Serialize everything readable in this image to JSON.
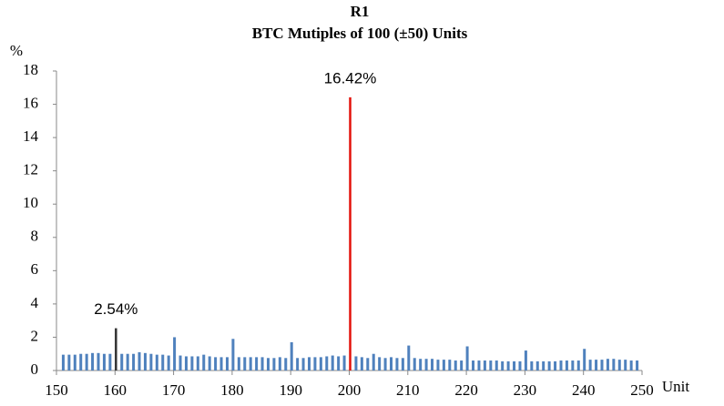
{
  "chart_data": {
    "type": "bar",
    "title": "R1",
    "subtitle": "BTC Mutiples of 100 (±50) Units",
    "y_label": "%",
    "x_label": "Unit",
    "xlim": [
      150,
      250
    ],
    "xticks": [
      150,
      160,
      170,
      180,
      190,
      200,
      210,
      220,
      230,
      240,
      250
    ],
    "ylim": [
      0,
      18
    ],
    "yticks": [
      0,
      2,
      4,
      6,
      8,
      10,
      12,
      14,
      16,
      18
    ],
    "x": [
      151,
      152,
      153,
      154,
      155,
      156,
      157,
      158,
      159,
      160,
      161,
      162,
      163,
      164,
      165,
      166,
      167,
      168,
      169,
      170,
      171,
      172,
      173,
      174,
      175,
      176,
      177,
      178,
      179,
      180,
      181,
      182,
      183,
      184,
      185,
      186,
      187,
      188,
      189,
      190,
      191,
      192,
      193,
      194,
      195,
      196,
      197,
      198,
      199,
      200,
      201,
      202,
      203,
      204,
      205,
      206,
      207,
      208,
      209,
      210,
      211,
      212,
      213,
      214,
      215,
      216,
      217,
      218,
      219,
      220,
      221,
      222,
      223,
      224,
      225,
      226,
      227,
      228,
      229,
      230,
      231,
      232,
      233,
      234,
      235,
      236,
      237,
      238,
      239,
      240,
      241,
      242,
      243,
      244,
      245,
      246,
      247,
      248,
      249
    ],
    "values": [
      0.95,
      0.95,
      0.95,
      1.0,
      1.0,
      1.05,
      1.05,
      1.0,
      1.0,
      2.54,
      1.0,
      1.0,
      1.0,
      1.1,
      1.05,
      1.0,
      0.95,
      0.95,
      0.9,
      2.0,
      0.9,
      0.85,
      0.85,
      0.85,
      0.95,
      0.85,
      0.8,
      0.8,
      0.8,
      1.9,
      0.8,
      0.8,
      0.8,
      0.8,
      0.8,
      0.75,
      0.75,
      0.8,
      0.75,
      1.7,
      0.75,
      0.75,
      0.8,
      0.8,
      0.8,
      0.85,
      0.9,
      0.85,
      0.9,
      16.42,
      0.85,
      0.8,
      0.75,
      1.0,
      0.8,
      0.75,
      0.8,
      0.75,
      0.75,
      1.5,
      0.75,
      0.7,
      0.7,
      0.7,
      0.65,
      0.65,
      0.65,
      0.6,
      0.6,
      1.45,
      0.6,
      0.6,
      0.6,
      0.6,
      0.6,
      0.55,
      0.55,
      0.55,
      0.55,
      1.2,
      0.55,
      0.55,
      0.55,
      0.55,
      0.55,
      0.6,
      0.6,
      0.6,
      0.6,
      1.3,
      0.65,
      0.65,
      0.65,
      0.7,
      0.7,
      0.65,
      0.65,
      0.6,
      0.6
    ],
    "value_labels": [
      null,
      null,
      null,
      null,
      null,
      null,
      null,
      null,
      null,
      "2.54%",
      null,
      null,
      null,
      null,
      null,
      null,
      null,
      null,
      null,
      null,
      null,
      null,
      null,
      null,
      null,
      null,
      null,
      null,
      null,
      null,
      null,
      null,
      null,
      null,
      null,
      null,
      null,
      null,
      null,
      null,
      null,
      null,
      null,
      null,
      null,
      null,
      null,
      null,
      null,
      "16.42%",
      null,
      null,
      null,
      null,
      null,
      null,
      null,
      null,
      null,
      null,
      null,
      null,
      null,
      null,
      null,
      null,
      null,
      null,
      null,
      null,
      null,
      null,
      null,
      null,
      null,
      null,
      null,
      null,
      null,
      null,
      null,
      null,
      null,
      null,
      null,
      null,
      null,
      null,
      null,
      null,
      null,
      null,
      null,
      null,
      null,
      null,
      null,
      null,
      null
    ],
    "color": "#4f81bd",
    "highlight_colors": {
      "160": "#333333",
      "200": "#e3120b"
    }
  }
}
